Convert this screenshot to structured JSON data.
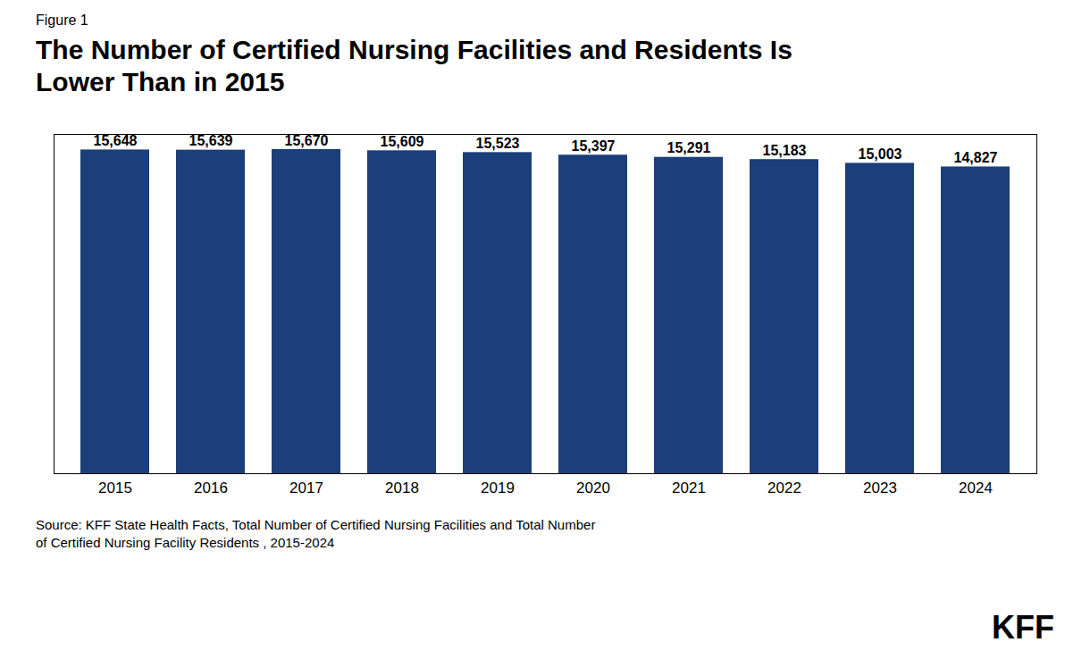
{
  "chart_data": {
    "type": "bar",
    "figure_label": "Figure 1",
    "title": "The Number of Certified Nursing Facilities and Residents Is\nLower Than in 2015",
    "categories": [
      "2015",
      "2016",
      "2017",
      "2018",
      "2019",
      "2020",
      "2021",
      "2022",
      "2023",
      "2024"
    ],
    "values": [
      15648,
      15639,
      15670,
      15609,
      15523,
      15397,
      15291,
      15183,
      15003,
      14827
    ],
    "value_labels": [
      "15,648",
      "15,639",
      "15,670",
      "15,609",
      "15,523",
      "15,397",
      "15,291",
      "15,183",
      "15,003",
      "14,827"
    ],
    "data_labels": true,
    "color": "#1B3F7A",
    "ylim": [
      0,
      16400
    ],
    "tick_labels": "x",
    "grid": false,
    "caption": "Source: KFF State Health Facts, Total Number of Certified Nursing Facilities and Total Number\nof Certified Nursing Facility Residents , 2015-2024",
    "annotations": [
      "KFF"
    ]
  }
}
